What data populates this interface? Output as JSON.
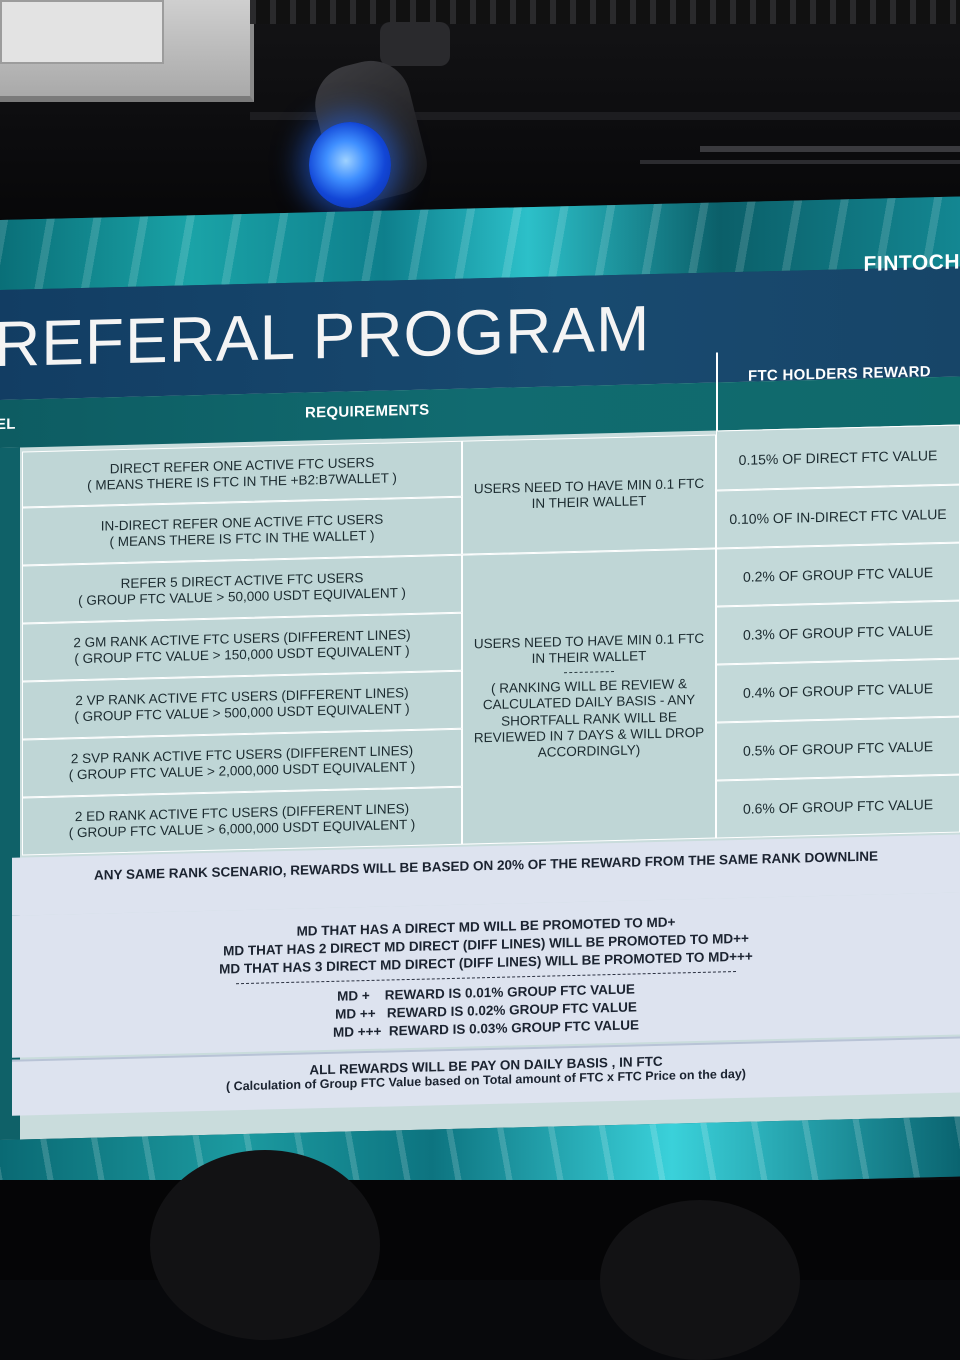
{
  "brand": "FINTOCH",
  "title": "REFERAL PROGRAM",
  "headers": {
    "level": "EL",
    "requirements": "REQUIREMENTS",
    "reward": "FTC HOLDERS REWARD"
  },
  "rows": [
    {
      "req1": "DIRECT REFER ONE ACTIVE FTC USERS",
      "req2": "( MEANS THERE IS FTC IN THE +B2:B7WALLET )"
    },
    {
      "req1": "IN-DIRECT REFER ONE ACTIVE FTC USERS",
      "req2": "( MEANS THERE IS FTC IN THE WALLET )"
    },
    {
      "req1": "REFER 5 DIRECT ACTIVE FTC USERS",
      "req2": "( GROUP FTC VALUE > 50,000 USDT EQUIVALENT )"
    },
    {
      "req1": "2 GM RANK ACTIVE FTC USERS (DIFFERENT LINES)",
      "req2": "( GROUP FTC VALUE > 150,000 USDT EQUIVALENT )"
    },
    {
      "req1": "2 VP RANK ACTIVE FTC USERS (DIFFERENT LINES)",
      "req2": "( GROUP FTC VALUE > 500,000 USDT EQUIVALENT )"
    },
    {
      "req1": "2 SVP RANK ACTIVE FTC USERS (DIFFERENT LINES)",
      "req2": "( GROUP FTC VALUE > 2,000,000 USDT EQUIVALENT )"
    },
    {
      "req1": "2 ED RANK ACTIVE FTC USERS (DIFFERENT LINES)",
      "req2": "( GROUP FTC VALUE > 6,000,000 USDT EQUIVALENT )"
    }
  ],
  "condition_a": {
    "line1": "USERS NEED TO HAVE MIN 0.1 FTC",
    "line2": "IN THEIR WALLET"
  },
  "condition_b": {
    "line1": "USERS NEED TO HAVE MIN 0.1 FTC",
    "line2": "IN THEIR WALLET",
    "note1": "( RANKING WILL BE REVIEW &",
    "note2": "CALCULATED DAILY BASIS - ANY",
    "note3": "SHORTFALL RANK WILL BE",
    "note4": "REVIEWED IN 7 DAYS & WILL DROP",
    "note5": "ACCORDINGLY)"
  },
  "rewards": [
    "0.15% OF DIRECT FTC VALUE",
    "0.10% OF IN-DIRECT FTC VALUE",
    "0.2% OF GROUP FTC VALUE",
    "0.3% OF GROUP FTC VALUE",
    "0.4% OF GROUP FTC VALUE",
    "0.5% OF GROUP FTC VALUE",
    "0.6% OF GROUP FTC VALUE"
  ],
  "same_rank": "ANY SAME RANK SCENARIO, REWARDS WILL BE BASED ON 20% OF THE REWARD FROM THE SAME RANK  DOWNLINE",
  "md_promotions": [
    "MD THAT HAS A DIRECT MD WILL BE PROMOTED TO MD+",
    "MD THAT HAS 2 DIRECT MD DIRECT (DIFF LINES) WILL BE PROMOTED TO MD++",
    "MD THAT HAS 3 DIRECT MD DIRECT (DIFF LINES) WILL BE PROMOTED TO MD+++"
  ],
  "md_rewards": [
    "MD +    REWARD IS 0.01% GROUP FTC VALUE",
    "MD ++   REWARD IS 0.02% GROUP FTC VALUE",
    "MD +++  REWARD IS 0.03% GROUP FTC VALUE"
  ],
  "footer": {
    "line1": "ALL REWARDS WILL BE PAY ON DAILY BASIS , IN FTC",
    "line2": "( Calculation of Group FTC Value based on Total amount of FTC x FTC Price on the day)"
  }
}
